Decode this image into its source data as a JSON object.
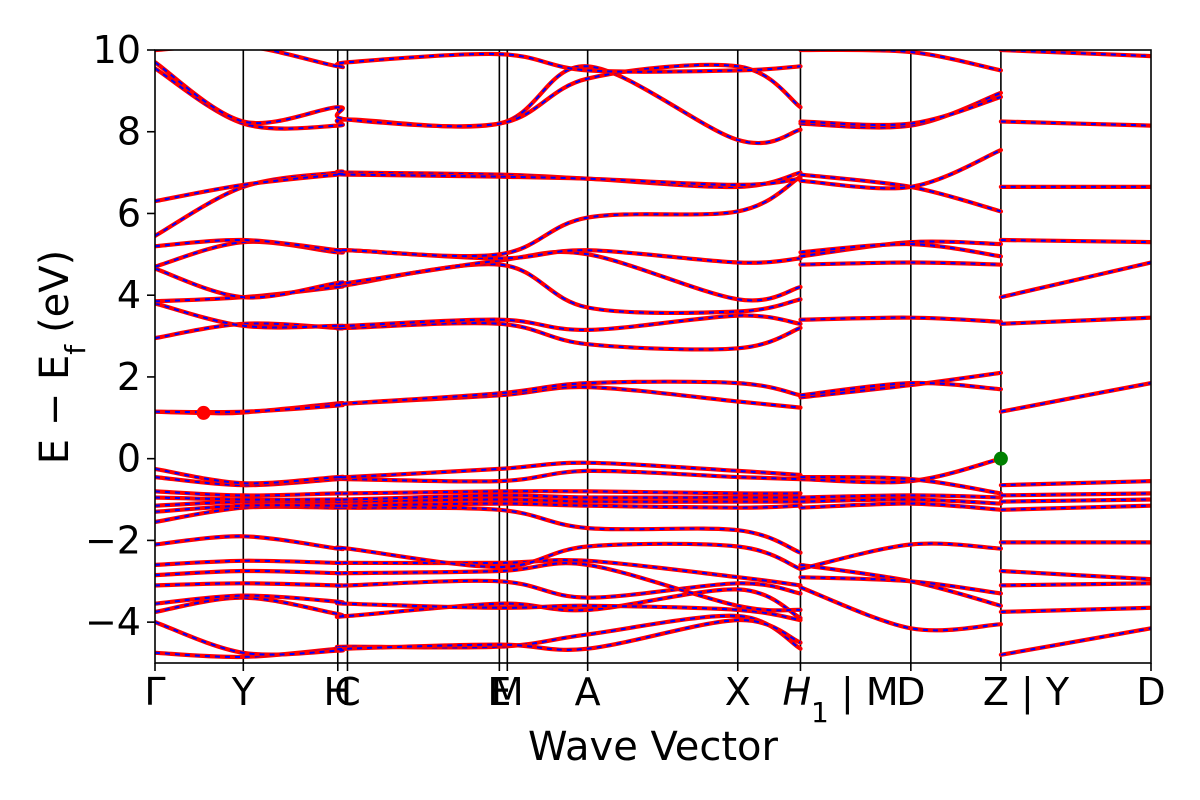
{
  "chart_data": {
    "type": "line",
    "xlabel": "Wave Vector",
    "ylabel": "E − E",
    "ylabel_sub": "f",
    "ylabel_unit": "(eV)",
    "ylim": [
      -5,
      10
    ],
    "yticks": [
      -4,
      -2,
      0,
      2,
      4,
      6,
      8,
      10
    ],
    "ytick_labels": [
      "−4",
      "−2",
      "0",
      "2",
      "4",
      "6",
      "8",
      "10"
    ],
    "xlim": [
      0,
      11.28
    ],
    "kpoints": [
      {
        "label": "Γ",
        "x": 0.0
      },
      {
        "label": "Y",
        "x": 1.0
      },
      {
        "label": "H",
        "x": 2.07
      },
      {
        "label": "C",
        "x": 2.18
      },
      {
        "label": "E",
        "x": 3.9
      },
      {
        "label": "M",
        "x": 3.99
      },
      {
        "label": "A",
        "x": 4.9
      },
      {
        "label": "X",
        "x": 6.6
      },
      {
        "label": "H",
        "x": 7.31,
        "sub": "1",
        "suffix": " | M"
      },
      {
        "label": "D",
        "x": 8.56
      },
      {
        "label": "Z",
        "x": 9.58,
        "suffix": " | Y"
      },
      {
        "label": "D",
        "x": 11.28
      }
    ],
    "vlines": [
      1.0,
      2.07,
      2.18,
      3.9,
      3.99,
      4.9,
      6.6,
      7.31,
      8.56,
      9.58
    ],
    "series_colors": {
      "primary": "#ff0000",
      "overlay": "#0000ff"
    },
    "markers": [
      {
        "name": "CBM",
        "x": 0.55,
        "y": 1.12,
        "color": "#ff0000"
      },
      {
        "name": "VBM",
        "x": 9.58,
        "y": 0.0,
        "color": "#008000"
      }
    ],
    "bands": [
      [
        [
          0,
          -4.75
        ],
        [
          1.0,
          -4.85
        ],
        [
          2.07,
          -4.65
        ],
        [
          2.18,
          -4.6
        ],
        [
          3.9,
          -4.6
        ],
        [
          4.9,
          -4.3
        ],
        [
          6.6,
          -3.85
        ],
        [
          7.31,
          -4.65
        ]
      ],
      [
        [
          0,
          -4.0
        ],
        [
          1.0,
          -4.75
        ],
        [
          2.07,
          -4.7
        ],
        [
          2.18,
          -4.65
        ],
        [
          3.9,
          -4.55
        ],
        [
          4.9,
          -4.65
        ],
        [
          6.6,
          -3.95
        ],
        [
          7.31,
          -4.5
        ]
      ],
      [
        [
          0,
          -3.75
        ],
        [
          1.0,
          -3.4
        ],
        [
          2.07,
          -3.8
        ],
        [
          2.18,
          -3.85
        ],
        [
          3.9,
          -3.55
        ],
        [
          4.9,
          -3.7
        ],
        [
          6.6,
          -3.2
        ],
        [
          7.31,
          -3.9
        ]
      ],
      [
        [
          0,
          -3.55
        ],
        [
          1.0,
          -3.35
        ],
        [
          2.07,
          -3.5
        ],
        [
          2.18,
          -3.55
        ],
        [
          3.9,
          -3.65
        ],
        [
          4.9,
          -3.6
        ],
        [
          6.6,
          -3.7
        ],
        [
          7.31,
          -3.95
        ]
      ],
      [
        [
          0,
          -3.1
        ],
        [
          1.0,
          -3.05
        ],
        [
          2.07,
          -3.1
        ],
        [
          2.18,
          -3.1
        ],
        [
          3.9,
          -3.0
        ],
        [
          4.9,
          -3.4
        ],
        [
          6.6,
          -3.05
        ],
        [
          7.31,
          -3.3
        ]
      ],
      [
        [
          0,
          -2.85
        ],
        [
          1.0,
          -2.75
        ],
        [
          2.07,
          -2.8
        ],
        [
          2.18,
          -2.8
        ],
        [
          3.9,
          -2.75
        ],
        [
          4.9,
          -2.6
        ],
        [
          6.6,
          -3.6
        ],
        [
          7.31,
          -3.7
        ]
      ],
      [
        [
          0,
          -2.6
        ],
        [
          1.0,
          -2.5
        ],
        [
          2.07,
          -2.55
        ],
        [
          2.18,
          -2.55
        ],
        [
          3.9,
          -2.55
        ],
        [
          4.9,
          -2.5
        ],
        [
          6.6,
          -2.9
        ],
        [
          7.31,
          -3.1
        ]
      ],
      [
        [
          0,
          -2.1
        ],
        [
          1.0,
          -1.9
        ],
        [
          2.07,
          -2.2
        ],
        [
          2.18,
          -2.2
        ],
        [
          3.9,
          -2.65
        ],
        [
          4.9,
          -2.15
        ],
        [
          6.6,
          -2.15
        ],
        [
          7.31,
          -2.7
        ]
      ],
      [
        [
          0,
          -1.55
        ],
        [
          1.0,
          -1.2
        ],
        [
          2.07,
          -1.2
        ],
        [
          2.18,
          -1.2
        ],
        [
          3.9,
          -1.25
        ],
        [
          4.9,
          -1.7
        ],
        [
          6.6,
          -1.75
        ],
        [
          7.31,
          -2.3
        ]
      ],
      [
        [
          0,
          -1.3
        ],
        [
          1.0,
          -1.15
        ],
        [
          2.07,
          -1.15
        ],
        [
          2.18,
          -1.15
        ],
        [
          3.9,
          -1.1
        ],
        [
          4.9,
          -1.15
        ],
        [
          6.6,
          -1.2
        ],
        [
          7.31,
          -1.15
        ]
      ],
      [
        [
          0,
          -1.15
        ],
        [
          1.0,
          -1.05
        ],
        [
          2.07,
          -1.05
        ],
        [
          2.18,
          -1.05
        ],
        [
          3.9,
          -1.0
        ],
        [
          4.9,
          -1.05
        ],
        [
          6.6,
          -1.05
        ],
        [
          7.31,
          -1.05
        ]
      ],
      [
        [
          0,
          -0.95
        ],
        [
          1.0,
          -1.0
        ],
        [
          2.07,
          -1.0
        ],
        [
          2.18,
          -1.0
        ],
        [
          3.9,
          -0.9
        ],
        [
          4.9,
          -0.95
        ],
        [
          6.6,
          -0.95
        ],
        [
          7.31,
          -0.95
        ]
      ],
      [
        [
          0,
          -0.8
        ],
        [
          1.0,
          -0.9
        ],
        [
          2.07,
          -0.85
        ],
        [
          2.18,
          -0.85
        ],
        [
          3.9,
          -0.8
        ],
        [
          4.9,
          -0.8
        ],
        [
          6.6,
          -0.85
        ],
        [
          7.31,
          -0.85
        ]
      ],
      [
        [
          0,
          -0.45
        ],
        [
          1.0,
          -0.65
        ],
        [
          2.07,
          -0.5
        ],
        [
          2.18,
          -0.5
        ],
        [
          3.9,
          -0.55
        ],
        [
          4.9,
          -0.3
        ],
        [
          6.6,
          -0.45
        ],
        [
          7.31,
          -0.5
        ]
      ],
      [
        [
          0,
          -0.25
        ],
        [
          1.0,
          -0.6
        ],
        [
          2.07,
          -0.45
        ],
        [
          2.18,
          -0.45
        ],
        [
          3.9,
          -0.25
        ],
        [
          4.9,
          -0.1
        ],
        [
          6.6,
          -0.3
        ],
        [
          7.31,
          -0.4
        ]
      ],
      [
        [
          0,
          1.15
        ],
        [
          0.55,
          1.12
        ],
        [
          1.0,
          1.13
        ],
        [
          2.07,
          1.35
        ],
        [
          2.18,
          1.35
        ],
        [
          3.9,
          1.55
        ],
        [
          4.9,
          1.75
        ],
        [
          6.6,
          1.4
        ],
        [
          7.31,
          1.25
        ]
      ],
      [
        [
          0,
          1.15
        ],
        [
          1.0,
          1.15
        ],
        [
          2.07,
          1.3
        ],
        [
          2.18,
          1.35
        ],
        [
          3.9,
          1.6
        ],
        [
          4.9,
          1.85
        ],
        [
          6.6,
          1.85
        ],
        [
          7.31,
          1.55
        ]
      ],
      [
        [
          0,
          2.95
        ],
        [
          1.0,
          3.3
        ],
        [
          2.07,
          3.2
        ],
        [
          2.18,
          3.2
        ],
        [
          3.9,
          3.3
        ],
        [
          4.9,
          2.8
        ],
        [
          6.6,
          2.7
        ],
        [
          7.31,
          3.2
        ]
      ],
      [
        [
          0,
          3.8
        ],
        [
          1.0,
          3.25
        ],
        [
          2.07,
          3.25
        ],
        [
          2.18,
          3.25
        ],
        [
          3.9,
          3.4
        ],
        [
          4.9,
          3.15
        ],
        [
          6.6,
          3.5
        ],
        [
          7.31,
          3.3
        ]
      ],
      [
        [
          0,
          3.85
        ],
        [
          1.0,
          3.95
        ],
        [
          2.07,
          4.2
        ],
        [
          2.18,
          4.25
        ],
        [
          3.9,
          4.75
        ],
        [
          4.9,
          3.7
        ],
        [
          6.6,
          3.6
        ],
        [
          7.31,
          3.9
        ]
      ],
      [
        [
          0,
          4.65
        ],
        [
          1.0,
          3.95
        ],
        [
          2.07,
          4.3
        ],
        [
          2.18,
          4.3
        ],
        [
          3.9,
          4.85
        ],
        [
          4.9,
          5.0
        ],
        [
          6.6,
          3.9
        ],
        [
          7.31,
          4.2
        ]
      ],
      [
        [
          0,
          4.7
        ],
        [
          1.0,
          5.3
        ],
        [
          2.07,
          5.05
        ],
        [
          2.18,
          5.1
        ],
        [
          3.9,
          4.9
        ],
        [
          4.9,
          5.1
        ],
        [
          6.6,
          4.8
        ],
        [
          7.31,
          4.9
        ]
      ],
      [
        [
          0,
          5.2
        ],
        [
          1.0,
          5.35
        ],
        [
          2.07,
          5.1
        ],
        [
          2.18,
          5.1
        ],
        [
          3.9,
          5.0
        ],
        [
          4.9,
          5.9
        ],
        [
          6.6,
          6.05
        ],
        [
          7.31,
          6.9
        ]
      ],
      [
        [
          0,
          5.45
        ],
        [
          1.0,
          6.65
        ],
        [
          2.07,
          7.0
        ],
        [
          2.18,
          7.0
        ],
        [
          3.9,
          6.95
        ],
        [
          4.9,
          6.85
        ],
        [
          6.6,
          6.65
        ],
        [
          7.31,
          7.0
        ]
      ],
      [
        [
          0,
          6.3
        ],
        [
          1.0,
          6.7
        ],
        [
          2.07,
          6.95
        ],
        [
          2.18,
          6.95
        ],
        [
          3.9,
          6.9
        ],
        [
          4.9,
          6.85
        ],
        [
          6.6,
          6.7
        ],
        [
          7.31,
          6.85
        ]
      ],
      [
        [
          0,
          9.55
        ],
        [
          1.0,
          8.2
        ],
        [
          2.07,
          8.15
        ],
        [
          2.18,
          8.3
        ],
        [
          3.9,
          8.2
        ],
        [
          4.9,
          9.6
        ],
        [
          6.6,
          7.8
        ],
        [
          7.31,
          8.05
        ]
      ],
      [
        [
          0,
          9.7
        ],
        [
          1.0,
          8.25
        ],
        [
          2.07,
          8.6
        ],
        [
          2.18,
          8.3
        ],
        [
          3.9,
          8.2
        ],
        [
          4.9,
          9.3
        ],
        [
          6.6,
          9.6
        ],
        [
          7.31,
          8.6
        ]
      ],
      [
        [
          0,
          10.0
        ],
        [
          1.0,
          10.1
        ],
        [
          2.07,
          9.6
        ],
        [
          2.18,
          9.7
        ],
        [
          3.9,
          9.9
        ],
        [
          4.9,
          9.5
        ],
        [
          6.6,
          9.5
        ],
        [
          7.31,
          9.6
        ]
      ],
      [
        [
          7.31,
          -2.6
        ],
        [
          8.56,
          -3.0
        ],
        [
          9.58,
          -3.6
        ]
      ],
      [
        [
          7.31,
          -2.9
        ],
        [
          8.56,
          -3.0
        ],
        [
          9.58,
          -3.3
        ]
      ],
      [
        [
          7.31,
          -3.15
        ],
        [
          8.56,
          -4.15
        ],
        [
          9.58,
          -4.05
        ]
      ],
      [
        [
          7.31,
          -2.7
        ],
        [
          8.56,
          -2.1
        ],
        [
          9.58,
          -2.2
        ]
      ],
      [
        [
          7.31,
          -1.2
        ],
        [
          8.56,
          -1.1
        ],
        [
          9.58,
          -1.25
        ]
      ],
      [
        [
          7.31,
          -1.05
        ],
        [
          8.56,
          -1.0
        ],
        [
          9.58,
          -1.1
        ]
      ],
      [
        [
          7.31,
          -0.95
        ],
        [
          8.56,
          -0.9
        ],
        [
          9.58,
          -0.95
        ]
      ],
      [
        [
          7.31,
          -0.5
        ],
        [
          8.56,
          -0.55
        ],
        [
          9.58,
          0.0
        ]
      ],
      [
        [
          7.31,
          -0.45
        ],
        [
          8.56,
          -0.5
        ],
        [
          9.58,
          -0.85
        ]
      ],
      [
        [
          7.31,
          1.5
        ],
        [
          8.56,
          1.8
        ],
        [
          9.58,
          2.1
        ]
      ],
      [
        [
          7.31,
          1.55
        ],
        [
          8.56,
          1.85
        ],
        [
          9.58,
          1.7
        ]
      ],
      [
        [
          7.31,
          3.4
        ],
        [
          8.56,
          3.45
        ],
        [
          9.58,
          3.35
        ]
      ],
      [
        [
          7.31,
          4.75
        ],
        [
          8.56,
          4.8
        ],
        [
          9.58,
          4.75
        ]
      ],
      [
        [
          7.31,
          4.95
        ],
        [
          8.56,
          5.3
        ],
        [
          9.58,
          5.25
        ]
      ],
      [
        [
          7.31,
          5.05
        ],
        [
          8.56,
          5.25
        ],
        [
          9.58,
          4.95
        ]
      ],
      [
        [
          7.31,
          6.95
        ],
        [
          8.56,
          6.65
        ],
        [
          9.58,
          6.05
        ]
      ],
      [
        [
          7.31,
          6.8
        ],
        [
          8.56,
          6.65
        ],
        [
          9.58,
          7.55
        ]
      ],
      [
        [
          7.31,
          8.2
        ],
        [
          8.56,
          8.15
        ],
        [
          9.58,
          8.95
        ]
      ],
      [
        [
          7.31,
          8.25
        ],
        [
          8.56,
          8.2
        ],
        [
          9.58,
          8.85
        ]
      ],
      [
        [
          7.31,
          10.0
        ],
        [
          8.56,
          9.95
        ],
        [
          9.58,
          9.5
        ]
      ],
      [
        [
          9.58,
          -4.8
        ],
        [
          11.28,
          -4.15
        ]
      ],
      [
        [
          9.58,
          -3.75
        ],
        [
          11.28,
          -3.65
        ]
      ],
      [
        [
          9.58,
          -3.1
        ],
        [
          11.28,
          -3.05
        ]
      ],
      [
        [
          9.58,
          -2.75
        ],
        [
          11.28,
          -2.95
        ]
      ],
      [
        [
          9.58,
          -2.05
        ],
        [
          11.28,
          -2.05
        ]
      ],
      [
        [
          9.58,
          -1.25
        ],
        [
          11.28,
          -1.15
        ]
      ],
      [
        [
          9.58,
          -1.05
        ],
        [
          11.28,
          -1.0
        ]
      ],
      [
        [
          9.58,
          -0.9
        ],
        [
          11.28,
          -0.85
        ]
      ],
      [
        [
          9.58,
          -0.65
        ],
        [
          11.28,
          -0.55
        ]
      ],
      [
        [
          9.58,
          1.15
        ],
        [
          11.28,
          1.85
        ]
      ],
      [
        [
          9.58,
          3.3
        ],
        [
          11.28,
          3.45
        ]
      ],
      [
        [
          9.58,
          3.95
        ],
        [
          11.28,
          4.8
        ]
      ],
      [
        [
          9.58,
          5.35
        ],
        [
          11.28,
          5.3
        ]
      ],
      [
        [
          9.58,
          6.65
        ],
        [
          11.28,
          6.65
        ]
      ],
      [
        [
          9.58,
          8.25
        ],
        [
          11.28,
          8.15
        ]
      ],
      [
        [
          9.58,
          10.0
        ],
        [
          11.28,
          9.85
        ]
      ]
    ]
  }
}
